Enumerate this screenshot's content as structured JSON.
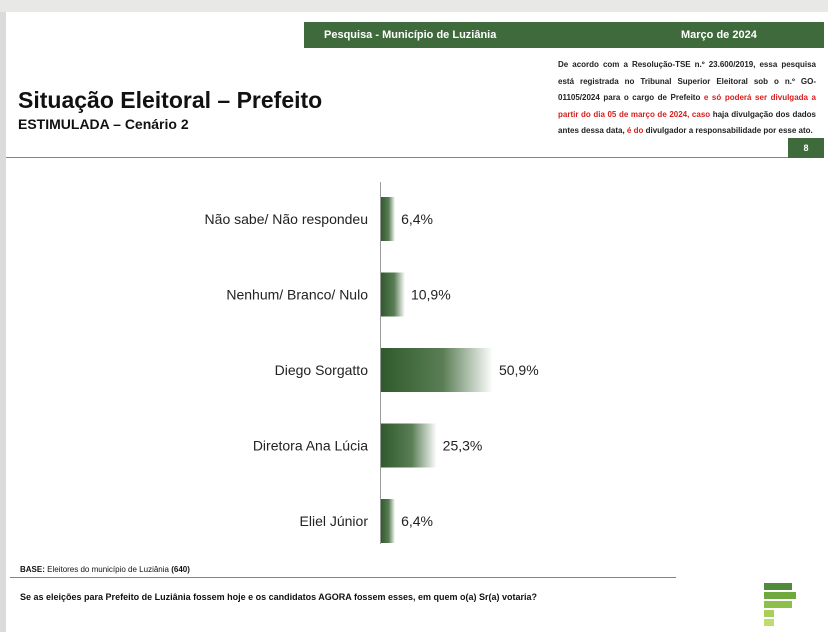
{
  "header": {
    "survey": "Pesquisa - Município de Luziânia",
    "date": "Março de 2024",
    "page_number": "8"
  },
  "disclaimer": {
    "text_a": "De acordo com a Resolução-TSE n.º 23.600/2019, essa pesquisa está registrada no Tribunal Superior Eleitoral sob o n.º GO-01105/2024 para o cargo de Prefeito ",
    "text_red_a": "e só poderá ser divulgada a partir do dia 05 de março de 2024, caso",
    "text_b": " haja divulgação dos dados antes dessa data, ",
    "text_red_b": "é do",
    "text_c": " divulgador a responsabilidade por esse ato."
  },
  "title": "Situação Eleitoral – Prefeito",
  "subtitle": "ESTIMULADA – Cenário 2",
  "base": {
    "label": "BASE:",
    "text": "Eleitores do município de Luziânia",
    "count": "(640)"
  },
  "question": "Se as eleições para Prefeito de Luziânia fossem hoje e os candidatos AGORA fossem esses, em quem o(a) Sr(a) votaria?",
  "colors": {
    "brand_green": "#3f6b3c",
    "bar_dark": "#2f5a2c",
    "bar_light": "#ffffff"
  },
  "chart_data": {
    "type": "bar",
    "orientation": "horizontal",
    "categories": [
      "Não sabe/ Não respondeu",
      "Nenhum/ Branco/ Nulo",
      "Diego Sorgatto",
      "Diretora Ana Lúcia",
      "Eliel Júnior"
    ],
    "values": [
      6.4,
      10.9,
      50.9,
      25.3,
      6.4
    ],
    "value_labels": [
      "6,4%",
      "10,9%",
      "50,9%",
      "25,3%",
      "6,4%"
    ],
    "unit": "%",
    "xlim": [
      0,
      100
    ],
    "grid": false,
    "legend": "none"
  }
}
